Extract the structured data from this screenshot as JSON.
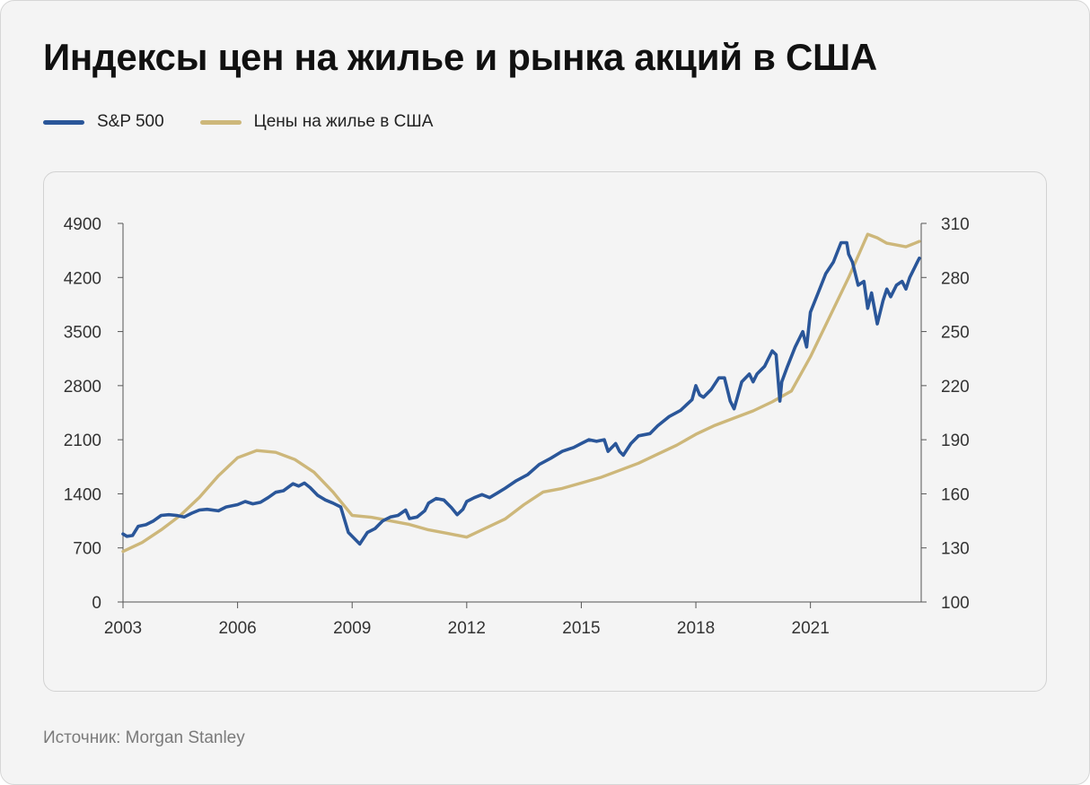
{
  "title": "Индексы цен на жилье и рынка акций в США",
  "source": "Источник: Morgan Stanley",
  "colors": {
    "sp500": "#2a5699",
    "housing": "#cdb77a",
    "axis": "#555555"
  },
  "chart_data": {
    "type": "line",
    "title": "Индексы цен на жилье и рынка акций в США",
    "xlabel": "",
    "ylabel": "",
    "legend": "top-left",
    "grid": false,
    "xlim": [
      2003,
      2023.9
    ],
    "x_ticks": [
      2003,
      2006,
      2009,
      2012,
      2015,
      2018,
      2021
    ],
    "y_left": {
      "lim": [
        0,
        4900
      ],
      "ticks": [
        0,
        700,
        1400,
        2100,
        2800,
        3500,
        4200,
        4900
      ]
    },
    "y_right": {
      "lim": [
        100,
        310
      ],
      "ticks": [
        100,
        130,
        160,
        190,
        220,
        250,
        280,
        310
      ]
    },
    "series": [
      {
        "name": "S&P 500",
        "axis": "left",
        "color": "#2a5699",
        "x": [
          2003.0,
          2003.1,
          2003.25,
          2003.4,
          2003.6,
          2003.8,
          2004.0,
          2004.2,
          2004.4,
          2004.6,
          2004.8,
          2005.0,
          2005.2,
          2005.5,
          2005.7,
          2006.0,
          2006.2,
          2006.4,
          2006.6,
          2006.8,
          2007.0,
          2007.2,
          2007.45,
          2007.6,
          2007.75,
          2007.9,
          2008.1,
          2008.3,
          2008.5,
          2008.7,
          2008.9,
          2009.0,
          2009.1,
          2009.2,
          2009.4,
          2009.6,
          2009.8,
          2010.0,
          2010.2,
          2010.4,
          2010.5,
          2010.7,
          2010.9,
          2011.0,
          2011.2,
          2011.4,
          2011.6,
          2011.75,
          2011.9,
          2012.0,
          2012.2,
          2012.4,
          2012.6,
          2012.8,
          2013.0,
          2013.3,
          2013.6,
          2013.9,
          2014.2,
          2014.5,
          2014.8,
          2015.0,
          2015.2,
          2015.4,
          2015.6,
          2015.7,
          2015.9,
          2016.0,
          2016.1,
          2016.3,
          2016.5,
          2016.8,
          2017.0,
          2017.3,
          2017.6,
          2017.9,
          2018.0,
          2018.1,
          2018.2,
          2018.4,
          2018.6,
          2018.75,
          2018.9,
          2019.0,
          2019.2,
          2019.4,
          2019.5,
          2019.6,
          2019.8,
          2020.0,
          2020.1,
          2020.2,
          2020.25,
          2020.4,
          2020.6,
          2020.8,
          2020.9,
          2021.0,
          2021.2,
          2021.4,
          2021.6,
          2021.8,
          2021.95,
          2022.0,
          2022.1,
          2022.25,
          2022.4,
          2022.5,
          2022.6,
          2022.75,
          2022.9,
          2023.0,
          2023.1,
          2023.25,
          2023.4,
          2023.5,
          2023.6,
          2023.8,
          2023.85
        ],
        "y": [
          880,
          850,
          860,
          980,
          1000,
          1050,
          1120,
          1130,
          1120,
          1100,
          1150,
          1190,
          1200,
          1180,
          1230,
          1260,
          1300,
          1270,
          1290,
          1350,
          1420,
          1440,
          1530,
          1500,
          1540,
          1480,
          1380,
          1320,
          1280,
          1230,
          900,
          850,
          800,
          750,
          900,
          950,
          1050,
          1100,
          1120,
          1190,
          1080,
          1100,
          1180,
          1280,
          1340,
          1320,
          1220,
          1130,
          1200,
          1300,
          1350,
          1390,
          1350,
          1410,
          1470,
          1570,
          1650,
          1780,
          1860,
          1950,
          2000,
          2050,
          2100,
          2080,
          2100,
          1950,
          2050,
          1950,
          1900,
          2050,
          2150,
          2180,
          2280,
          2400,
          2480,
          2620,
          2800,
          2680,
          2650,
          2750,
          2900,
          2900,
          2600,
          2500,
          2850,
          2950,
          2850,
          2950,
          3050,
          3250,
          3200,
          2600,
          2850,
          3050,
          3300,
          3500,
          3300,
          3750,
          4000,
          4250,
          4400,
          4650,
          4650,
          4500,
          4400,
          4100,
          4150,
          3800,
          4000,
          3600,
          3900,
          4050,
          3950,
          4100,
          4150,
          4050,
          4200,
          4400,
          4450
        ]
      },
      {
        "name": "Цены на жилье в США",
        "axis": "right",
        "color": "#cdb77a",
        "x": [
          2003.0,
          2003.5,
          2004.0,
          2004.5,
          2005.0,
          2005.5,
          2006.0,
          2006.5,
          2007.0,
          2007.5,
          2008.0,
          2008.5,
          2009.0,
          2009.5,
          2010.0,
          2010.5,
          2011.0,
          2011.5,
          2012.0,
          2012.5,
          2013.0,
          2013.5,
          2014.0,
          2014.5,
          2015.0,
          2015.5,
          2016.0,
          2016.5,
          2017.0,
          2017.5,
          2018.0,
          2018.5,
          2019.0,
          2019.5,
          2020.0,
          2020.5,
          2021.0,
          2021.5,
          2022.0,
          2022.25,
          2022.5,
          2022.75,
          2023.0,
          2023.25,
          2023.5,
          2023.85
        ],
        "y": [
          128,
          133,
          140,
          148,
          158,
          170,
          180,
          184,
          183,
          179,
          172,
          161,
          148,
          147,
          145,
          143,
          140,
          138,
          136,
          141,
          146,
          154,
          161,
          163,
          166,
          169,
          173,
          177,
          182,
          187,
          193,
          198,
          202,
          206,
          211,
          217,
          236,
          258,
          280,
          292,
          304,
          302,
          299,
          298,
          297,
          300
        ]
      }
    ]
  }
}
